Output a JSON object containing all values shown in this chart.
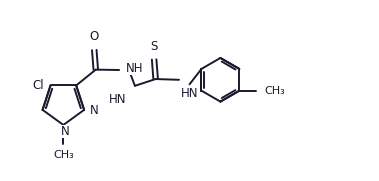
{
  "bg_color": "#ffffff",
  "line_color": "#1a1a2e",
  "line_width": 1.4,
  "font_size": 8.5,
  "figsize": [
    3.79,
    1.81
  ],
  "dpi": 100,
  "xlim": [
    0,
    10
  ],
  "ylim": [
    0,
    4.77
  ]
}
